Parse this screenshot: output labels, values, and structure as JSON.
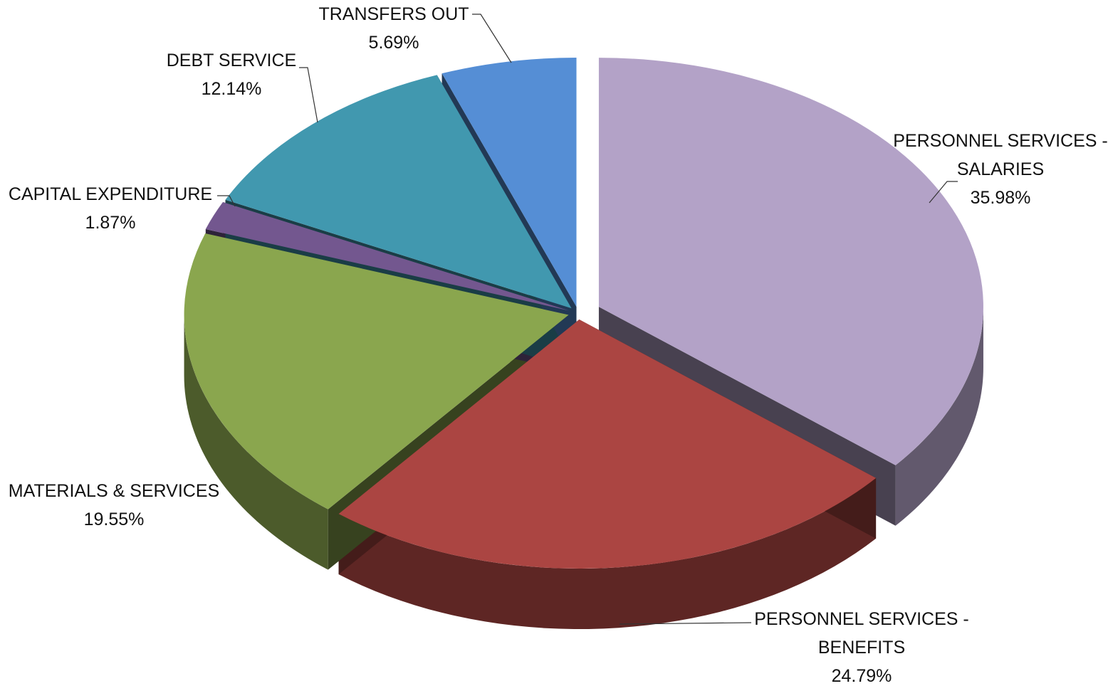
{
  "chart_data": {
    "type": "pie3d",
    "categories": [
      "PERSONNEL SERVICES - SALARIES",
      "PERSONNEL SERVICES - BENEFITS",
      "MATERIALS & SERVICES",
      "CAPITAL EXPENDITURE",
      "DEBT SERVICE",
      "TRANSFERS OUT"
    ],
    "values": [
      35.98,
      24.79,
      19.55,
      1.87,
      12.14,
      5.69
    ],
    "value_labels": [
      "35.98%",
      "24.79%",
      "19.55%",
      "1.87%",
      "12.14%",
      "5.69%"
    ],
    "colors": [
      "#b3a2c7",
      "#ab4542",
      "#8aa64e",
      "#73578f",
      "#4198af",
      "#558ed5"
    ]
  }
}
